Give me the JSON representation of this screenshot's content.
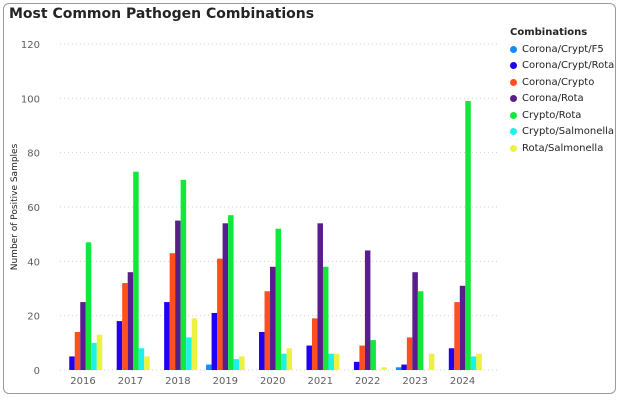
{
  "chart_data": {
    "type": "bar",
    "title": "Most Common Pathogen Combinations",
    "xlabel": "",
    "ylabel": "Number of Positive Samples",
    "ylim": [
      0,
      120
    ],
    "yticks": [
      0,
      20,
      40,
      60,
      80,
      100,
      120
    ],
    "grid": true,
    "legend_title": "Combinations",
    "legend_position": "right",
    "categories": [
      "2016",
      "2017",
      "2018",
      "2019",
      "2020",
      "2021",
      "2022",
      "2023",
      "2024"
    ],
    "series": [
      {
        "name": "Corona/Crypt/F5",
        "color": "#118DFF",
        "values": [
          0,
          0,
          0,
          2,
          0,
          0,
          0,
          1,
          0
        ]
      },
      {
        "name": "Corona/Crypt/Rota",
        "color": "#1F00F5",
        "values": [
          5,
          18,
          25,
          21,
          14,
          9,
          3,
          2,
          8
        ]
      },
      {
        "name": "Corona/Crypto",
        "color": "#FF4F1F",
        "values": [
          14,
          32,
          43,
          41,
          29,
          19,
          9,
          12,
          25
        ]
      },
      {
        "name": "Corona/Rota",
        "color": "#5A1E8C",
        "values": [
          25,
          36,
          55,
          54,
          38,
          54,
          44,
          36,
          31
        ]
      },
      {
        "name": "Crypto/Rota",
        "color": "#12E83A",
        "values": [
          47,
          73,
          70,
          57,
          52,
          38,
          11,
          29,
          99
        ]
      },
      {
        "name": "Crypto/Salmonella",
        "color": "#1EF0EC",
        "values": [
          10,
          8,
          12,
          4,
          6,
          6,
          0,
          0,
          5
        ]
      },
      {
        "name": "Rota/Salmonella",
        "color": "#EDF23E",
        "values": [
          13,
          5,
          19,
          5,
          8,
          6,
          1,
          6,
          6
        ]
      }
    ]
  }
}
